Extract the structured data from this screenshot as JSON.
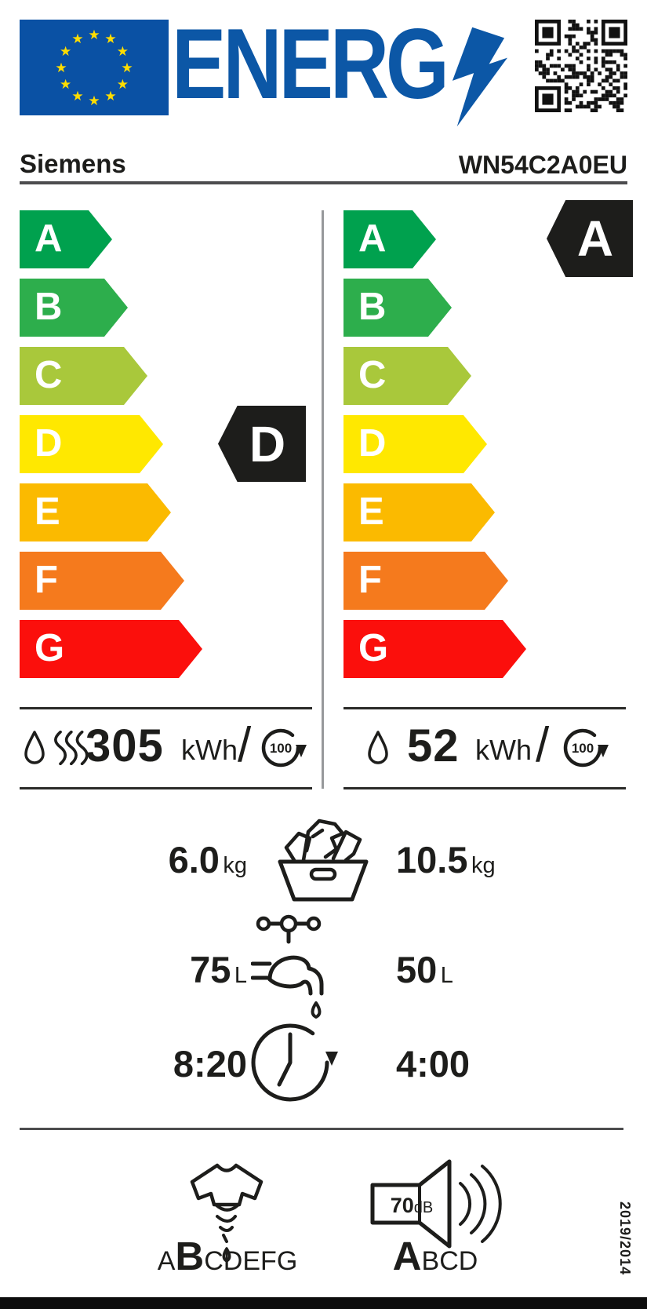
{
  "header": {
    "brand": "Siemens",
    "model": "WN54C2A0EU"
  },
  "logo": {
    "word": "ENERG",
    "bolt_icon": "lightning",
    "qr_icon": "qr-code"
  },
  "scale": {
    "grades": [
      {
        "letter": "A",
        "color": "#00a14e"
      },
      {
        "letter": "B",
        "color": "#2dae4c"
      },
      {
        "letter": "C",
        "color": "#a9c83b"
      },
      {
        "letter": "D",
        "color": "#ffe800"
      },
      {
        "letter": "E",
        "color": "#fbba00"
      },
      {
        "letter": "F",
        "color": "#f57a1d"
      },
      {
        "letter": "G",
        "color": "#fb0f0c"
      }
    ],
    "indicator_color": "#1d1d1b"
  },
  "ratings": {
    "left": {
      "grade": "D"
    },
    "right": {
      "grade": "A"
    }
  },
  "energy_left": {
    "value": "305",
    "unit": "kWh",
    "slash": "/",
    "per": "100"
  },
  "energy_right": {
    "value": "52",
    "unit": "kWh",
    "slash": "/",
    "per": "100"
  },
  "capacity": {
    "left_value": "6.0",
    "right_value": "10.5",
    "unit": "kg"
  },
  "water": {
    "left_value": "75",
    "right_value": "50",
    "unit": "L"
  },
  "duration": {
    "left_value": "8:20",
    "right_value": "4:00"
  },
  "spin_class": {
    "letters": [
      "A",
      "B",
      "C",
      "D",
      "E",
      "F",
      "G"
    ],
    "highlight": "B"
  },
  "noise_class": {
    "db_value": "70",
    "db_unit": "dB",
    "letters": [
      "A",
      "B",
      "C",
      "D"
    ],
    "highlight": "A"
  },
  "regulation": "2019/2014"
}
